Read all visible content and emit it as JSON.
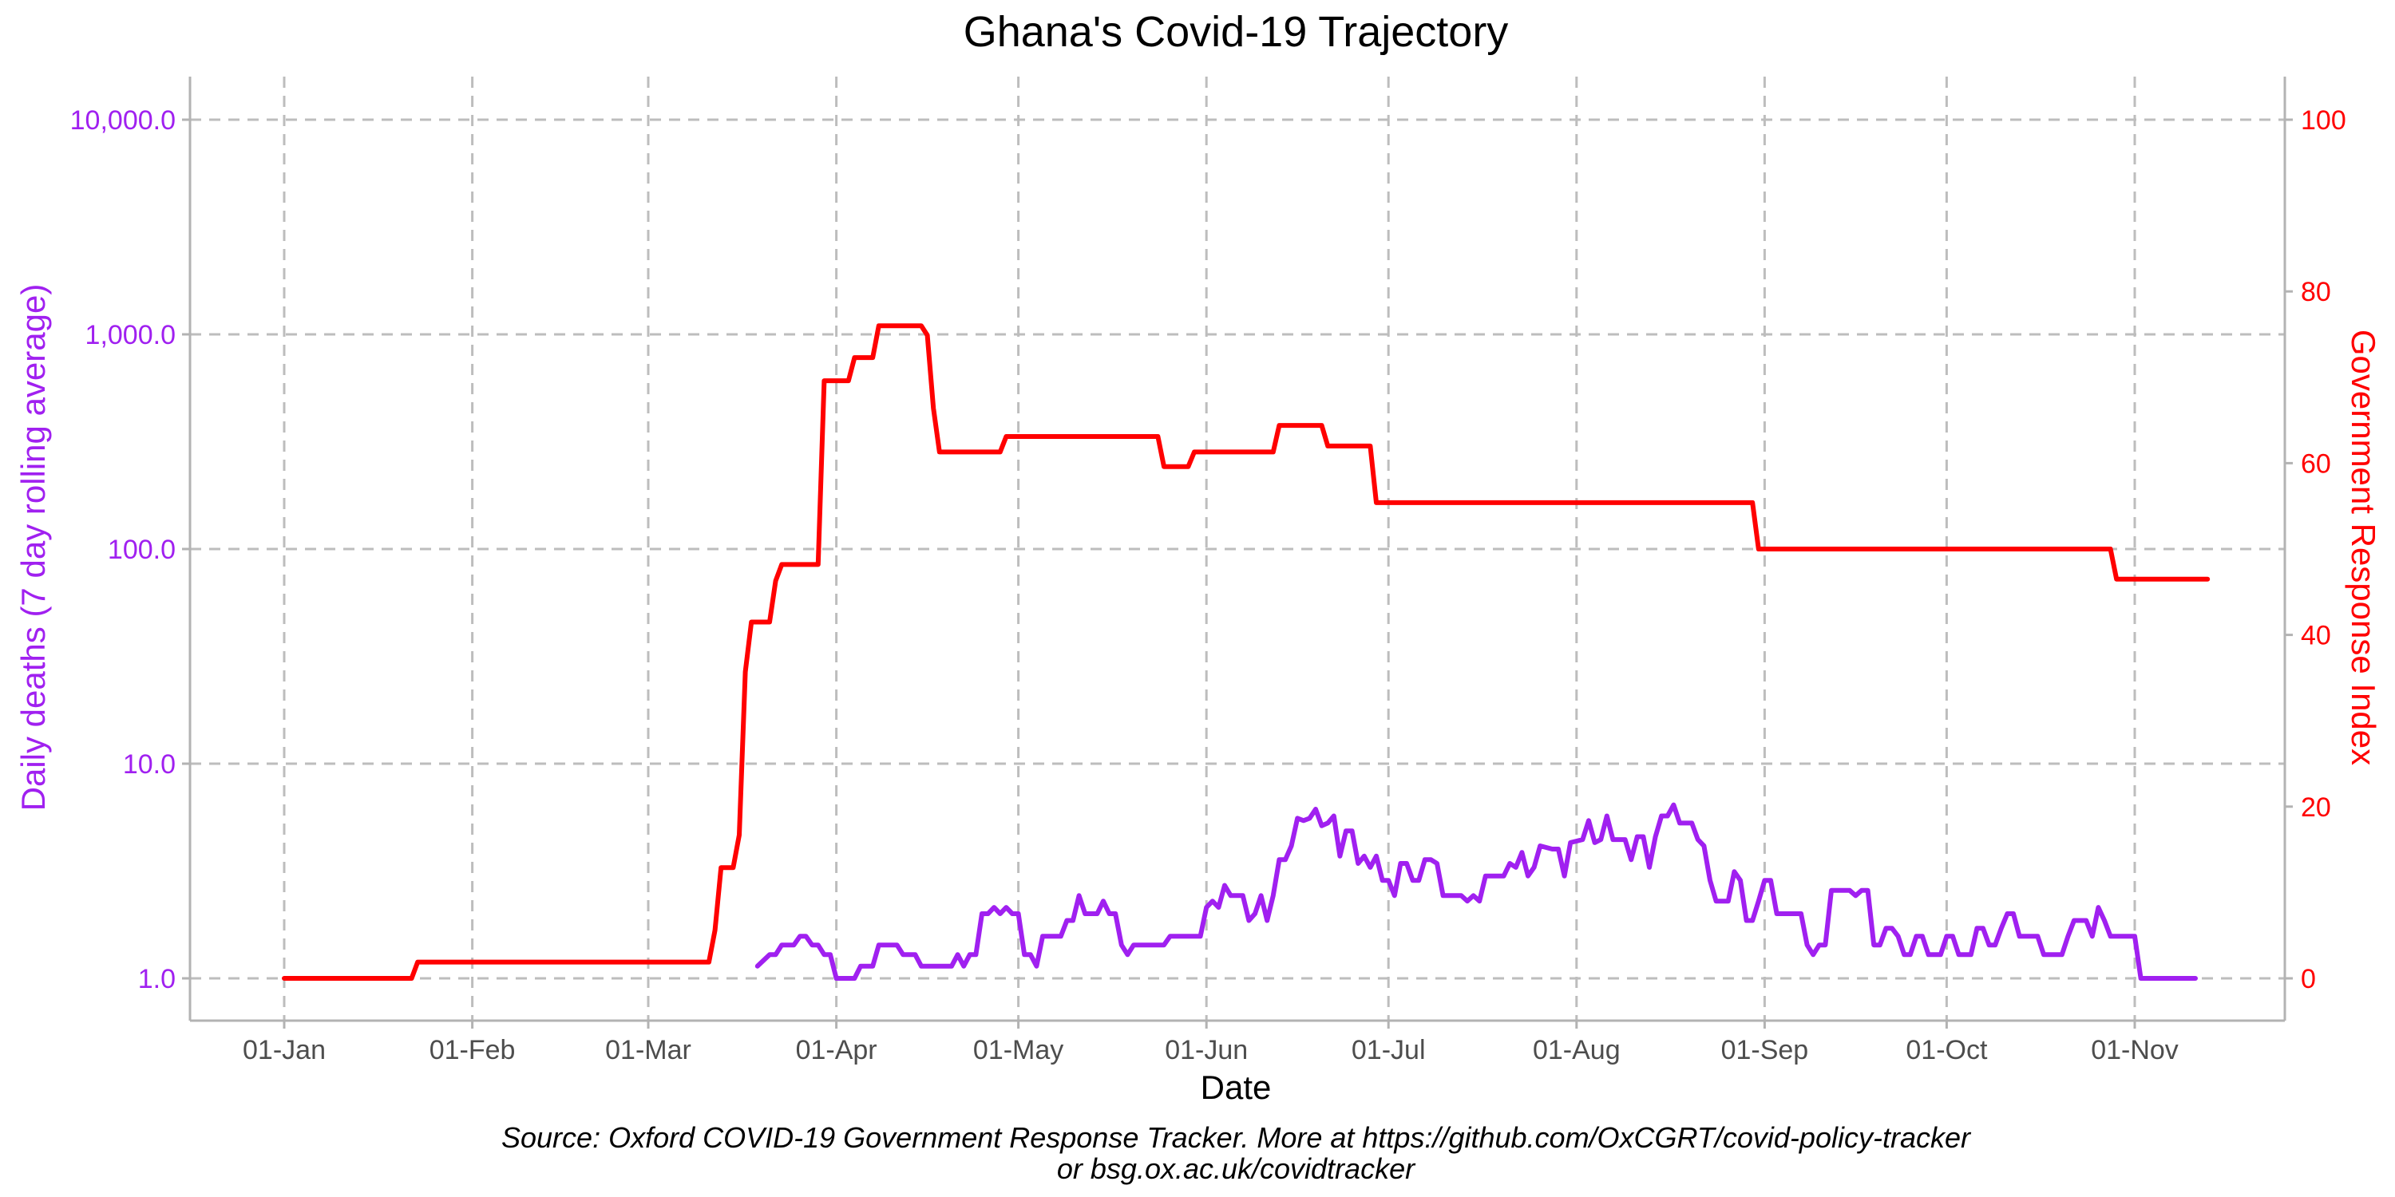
{
  "chart_data": {
    "type": "line",
    "title": "Ghana's Covid-19 Trajectory",
    "xlabel": "Date",
    "ylabel_left": "Daily deaths (7 day rolling average)",
    "ylabel_right": "Government Response Index",
    "caption_line1": "Source: Oxford COVID-19 Government Response Tracker. More at https://github.com/OxCGRT/covid-policy-tracker",
    "caption_line2": "or bsg.ox.ac.uk/covidtracker",
    "x_ticks": [
      "01-Jan",
      "01-Feb",
      "01-Mar",
      "01-Apr",
      "01-May",
      "01-Jun",
      "01-Jul",
      "01-Aug",
      "01-Sep",
      "01-Oct",
      "01-Nov"
    ],
    "y_left_ticks": [
      "1.0",
      "10.0",
      "100.0",
      "1,000.0",
      "10,000.0"
    ],
    "y_right_ticks": [
      "0",
      "20",
      "40",
      "60",
      "80",
      "100"
    ],
    "y_left_scale": "log",
    "y_left_lim": [
      1,
      10000
    ],
    "y_right_lim": [
      0,
      100
    ],
    "x_range": [
      "2020-01-01",
      "2020-11-13"
    ],
    "grid": true,
    "colors": {
      "deaths": "#a020f0",
      "stringency": "#ff0000",
      "axis_text": "#4d4d4d",
      "grid": "#bdbdbd"
    },
    "series": [
      {
        "axis": "right",
        "color": "#ff0000",
        "points": [
          [
            "2020-01-01",
            0
          ],
          [
            "2020-01-22",
            0
          ],
          [
            "2020-01-23",
            1.9
          ],
          [
            "2020-03-11",
            1.9
          ],
          [
            "2020-03-12",
            5.6
          ],
          [
            "2020-03-13",
            12.9
          ],
          [
            "2020-03-15",
            12.9
          ],
          [
            "2020-03-16",
            16.7
          ],
          [
            "2020-03-17",
            35.7
          ],
          [
            "2020-03-18",
            41.5
          ],
          [
            "2020-03-21",
            41.5
          ],
          [
            "2020-03-22",
            46.3
          ],
          [
            "2020-03-23",
            48.2
          ],
          [
            "2020-03-29",
            48.2
          ],
          [
            "2020-03-30",
            69.6
          ],
          [
            "2020-04-03",
            69.6
          ],
          [
            "2020-04-04",
            72.3
          ],
          [
            "2020-04-07",
            72.3
          ],
          [
            "2020-04-08",
            76.0
          ],
          [
            "2020-04-15",
            76.0
          ],
          [
            "2020-04-16",
            74.9
          ],
          [
            "2020-04-17",
            66.4
          ],
          [
            "2020-04-18",
            61.3
          ],
          [
            "2020-04-28",
            61.3
          ],
          [
            "2020-04-29",
            63.1
          ],
          [
            "2020-05-24",
            63.1
          ],
          [
            "2020-05-25",
            59.6
          ],
          [
            "2020-05-29",
            59.6
          ],
          [
            "2020-05-30",
            61.3
          ],
          [
            "2020-06-12",
            61.3
          ],
          [
            "2020-06-13",
            64.4
          ],
          [
            "2020-06-20",
            64.4
          ],
          [
            "2020-06-21",
            62.0
          ],
          [
            "2020-06-28",
            62.0
          ],
          [
            "2020-06-29",
            55.4
          ],
          [
            "2020-08-30",
            55.4
          ],
          [
            "2020-08-31",
            50.0
          ],
          [
            "2020-10-28",
            50.0
          ],
          [
            "2020-10-29",
            46.5
          ],
          [
            "2020-11-13",
            46.5
          ]
        ]
      },
      {
        "axis": "left",
        "color": "#a020f0",
        "points": [
          [
            "2020-03-19",
            1.14
          ],
          [
            "2020-03-21",
            1.29
          ],
          [
            "2020-03-22",
            1.29
          ],
          [
            "2020-03-23",
            1.43
          ],
          [
            "2020-03-25",
            1.43
          ],
          [
            "2020-03-26",
            1.57
          ],
          [
            "2020-03-27",
            1.57
          ],
          [
            "2020-03-28",
            1.43
          ],
          [
            "2020-03-29",
            1.43
          ],
          [
            "2020-03-30",
            1.29
          ],
          [
            "2020-03-31",
            1.29
          ],
          [
            "2020-04-01",
            1.0
          ],
          [
            "2020-04-04",
            1.0
          ],
          [
            "2020-04-05",
            1.14
          ],
          [
            "2020-04-07",
            1.14
          ],
          [
            "2020-04-08",
            1.43
          ],
          [
            "2020-04-11",
            1.43
          ],
          [
            "2020-04-12",
            1.29
          ],
          [
            "2020-04-14",
            1.29
          ],
          [
            "2020-04-15",
            1.14
          ],
          [
            "2020-04-20",
            1.14
          ],
          [
            "2020-04-21",
            1.29
          ],
          [
            "2020-04-22",
            1.14
          ],
          [
            "2020-04-23",
            1.29
          ],
          [
            "2020-04-24",
            1.29
          ],
          [
            "2020-04-25",
            2.0
          ],
          [
            "2020-04-26",
            2.0
          ],
          [
            "2020-04-27",
            2.14
          ],
          [
            "2020-04-28",
            2.0
          ],
          [
            "2020-04-29",
            2.14
          ],
          [
            "2020-04-30",
            2.0
          ],
          [
            "2020-05-01",
            2.0
          ],
          [
            "2020-05-02",
            1.29
          ],
          [
            "2020-05-03",
            1.29
          ],
          [
            "2020-05-04",
            1.14
          ],
          [
            "2020-05-05",
            1.57
          ],
          [
            "2020-05-08",
            1.57
          ],
          [
            "2020-05-09",
            1.86
          ],
          [
            "2020-05-10",
            1.86
          ],
          [
            "2020-05-11",
            2.43
          ],
          [
            "2020-05-12",
            2.0
          ],
          [
            "2020-05-14",
            2.0
          ],
          [
            "2020-05-15",
            2.29
          ],
          [
            "2020-05-16",
            2.0
          ],
          [
            "2020-05-17",
            2.0
          ],
          [
            "2020-05-18",
            1.43
          ],
          [
            "2020-05-19",
            1.29
          ],
          [
            "2020-05-20",
            1.43
          ],
          [
            "2020-05-25",
            1.43
          ],
          [
            "2020-05-26",
            1.57
          ],
          [
            "2020-05-31",
            1.57
          ],
          [
            "2020-06-01",
            2.14
          ],
          [
            "2020-06-02",
            2.29
          ],
          [
            "2020-06-03",
            2.14
          ],
          [
            "2020-06-04",
            2.71
          ],
          [
            "2020-06-05",
            2.43
          ],
          [
            "2020-06-07",
            2.43
          ],
          [
            "2020-06-08",
            1.86
          ],
          [
            "2020-06-09",
            2.0
          ],
          [
            "2020-06-10",
            2.43
          ],
          [
            "2020-06-11",
            1.86
          ],
          [
            "2020-06-12",
            2.43
          ],
          [
            "2020-06-13",
            3.57
          ],
          [
            "2020-06-14",
            3.57
          ],
          [
            "2020-06-15",
            4.14
          ],
          [
            "2020-06-16",
            5.57
          ],
          [
            "2020-06-17",
            5.43
          ],
          [
            "2020-06-18",
            5.57
          ],
          [
            "2020-06-19",
            6.14
          ],
          [
            "2020-06-20",
            5.14
          ],
          [
            "2020-06-21",
            5.29
          ],
          [
            "2020-06-22",
            5.71
          ],
          [
            "2020-06-23",
            3.71
          ],
          [
            "2020-06-24",
            4.86
          ],
          [
            "2020-06-25",
            4.86
          ],
          [
            "2020-06-26",
            3.43
          ],
          [
            "2020-06-27",
            3.71
          ],
          [
            "2020-06-28",
            3.29
          ],
          [
            "2020-06-29",
            3.71
          ],
          [
            "2020-06-30",
            2.86
          ],
          [
            "2020-07-01",
            2.86
          ],
          [
            "2020-07-02",
            2.43
          ],
          [
            "2020-07-03",
            3.43
          ],
          [
            "2020-07-04",
            3.43
          ],
          [
            "2020-07-05",
            2.86
          ],
          [
            "2020-07-06",
            2.86
          ],
          [
            "2020-07-07",
            3.57
          ],
          [
            "2020-07-08",
            3.57
          ],
          [
            "2020-07-09",
            3.43
          ],
          [
            "2020-07-10",
            2.43
          ],
          [
            "2020-07-13",
            2.43
          ],
          [
            "2020-07-14",
            2.29
          ],
          [
            "2020-07-15",
            2.43
          ],
          [
            "2020-07-16",
            2.29
          ],
          [
            "2020-07-17",
            3.0
          ],
          [
            "2020-07-20",
            3.0
          ],
          [
            "2020-07-21",
            3.43
          ],
          [
            "2020-07-22",
            3.29
          ],
          [
            "2020-07-23",
            3.86
          ],
          [
            "2020-07-24",
            3.0
          ],
          [
            "2020-07-25",
            3.29
          ],
          [
            "2020-07-26",
            4.14
          ],
          [
            "2020-07-28",
            4.0
          ],
          [
            "2020-07-29",
            4.0
          ],
          [
            "2020-07-30",
            3.0
          ],
          [
            "2020-07-31",
            4.29
          ],
          [
            "2020-08-02",
            4.43
          ],
          [
            "2020-08-03",
            5.43
          ],
          [
            "2020-08-04",
            4.29
          ],
          [
            "2020-08-05",
            4.43
          ],
          [
            "2020-08-06",
            5.71
          ],
          [
            "2020-08-07",
            4.43
          ],
          [
            "2020-08-09",
            4.43
          ],
          [
            "2020-08-10",
            3.57
          ],
          [
            "2020-08-11",
            4.57
          ],
          [
            "2020-08-12",
            4.57
          ],
          [
            "2020-08-13",
            3.29
          ],
          [
            "2020-08-14",
            4.57
          ],
          [
            "2020-08-15",
            5.71
          ],
          [
            "2020-08-16",
            5.71
          ],
          [
            "2020-08-17",
            6.43
          ],
          [
            "2020-08-18",
            5.29
          ],
          [
            "2020-08-20",
            5.29
          ],
          [
            "2020-08-21",
            4.43
          ],
          [
            "2020-08-22",
            4.14
          ],
          [
            "2020-08-23",
            2.86
          ],
          [
            "2020-08-24",
            2.29
          ],
          [
            "2020-08-26",
            2.29
          ],
          [
            "2020-08-27",
            3.14
          ],
          [
            "2020-08-28",
            2.86
          ],
          [
            "2020-08-29",
            1.86
          ],
          [
            "2020-08-30",
            1.86
          ],
          [
            "2020-08-31",
            2.29
          ],
          [
            "2020-09-01",
            2.86
          ],
          [
            "2020-09-02",
            2.86
          ],
          [
            "2020-09-03",
            2.0
          ],
          [
            "2020-09-07",
            2.0
          ],
          [
            "2020-09-08",
            1.43
          ],
          [
            "2020-09-09",
            1.29
          ],
          [
            "2020-09-10",
            1.43
          ],
          [
            "2020-09-11",
            1.43
          ],
          [
            "2020-09-12",
            2.57
          ],
          [
            "2020-09-15",
            2.57
          ],
          [
            "2020-09-16",
            2.43
          ],
          [
            "2020-09-17",
            2.57
          ],
          [
            "2020-09-18",
            2.57
          ],
          [
            "2020-09-19",
            1.43
          ],
          [
            "2020-09-20",
            1.43
          ],
          [
            "2020-09-21",
            1.71
          ],
          [
            "2020-09-22",
            1.71
          ],
          [
            "2020-09-23",
            1.57
          ],
          [
            "2020-09-24",
            1.29
          ],
          [
            "2020-09-25",
            1.29
          ],
          [
            "2020-09-26",
            1.57
          ],
          [
            "2020-09-27",
            1.57
          ],
          [
            "2020-09-28",
            1.29
          ],
          [
            "2020-09-30",
            1.29
          ],
          [
            "2020-10-01",
            1.57
          ],
          [
            "2020-10-02",
            1.57
          ],
          [
            "2020-10-03",
            1.29
          ],
          [
            "2020-10-05",
            1.29
          ],
          [
            "2020-10-06",
            1.71
          ],
          [
            "2020-10-07",
            1.71
          ],
          [
            "2020-10-08",
            1.43
          ],
          [
            "2020-10-09",
            1.43
          ],
          [
            "2020-10-10",
            1.71
          ],
          [
            "2020-10-11",
            2.0
          ],
          [
            "2020-10-12",
            2.0
          ],
          [
            "2020-10-13",
            1.57
          ],
          [
            "2020-10-16",
            1.57
          ],
          [
            "2020-10-17",
            1.29
          ],
          [
            "2020-10-20",
            1.29
          ],
          [
            "2020-10-21",
            1.57
          ],
          [
            "2020-10-22",
            1.86
          ],
          [
            "2020-10-24",
            1.86
          ],
          [
            "2020-10-25",
            1.57
          ],
          [
            "2020-10-26",
            2.14
          ],
          [
            "2020-10-27",
            1.86
          ],
          [
            "2020-10-28",
            1.57
          ],
          [
            "2020-11-01",
            1.57
          ],
          [
            "2020-11-02",
            1.0
          ],
          [
            "2020-11-11",
            1.0
          ]
        ]
      }
    ]
  }
}
